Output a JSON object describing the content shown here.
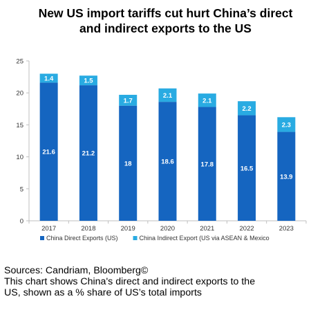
{
  "title": {
    "line1": "New US import tariffs cut hurt China’s direct",
    "line2": "and indirect exports to the US"
  },
  "notes": {
    "source": "Sources: Candriam, Bloomberg©",
    "line1": "This chart shows China's direct and indirect exports to the",
    "line2": "US, shown as a % share of US’s total imports"
  },
  "chart_data": {
    "type": "bar",
    "stacked": true,
    "categories": [
      "2017",
      "2018",
      "2019",
      "2020",
      "2021",
      "2022",
      "2023"
    ],
    "series": [
      {
        "name": "China Direct Exports (US)",
        "color": "#1565C0",
        "values": [
          21.6,
          21.2,
          18,
          18.6,
          17.8,
          16.5,
          13.9
        ]
      },
      {
        "name": "China Indirect Export (US via ASEAN & Mexico",
        "color": "#29ABE2",
        "values": [
          1.4,
          1.5,
          1.7,
          2.1,
          2.1,
          2.2,
          2.3
        ]
      }
    ],
    "ylim": [
      0,
      25
    ],
    "yticks": [
      0,
      5,
      10,
      15,
      20,
      25
    ],
    "grid": false,
    "legend": "bottom"
  }
}
